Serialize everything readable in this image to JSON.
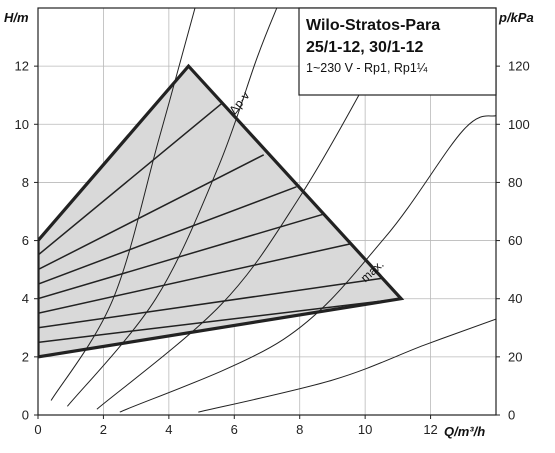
{
  "chart_data": {
    "type": "line",
    "title_lines": [
      "Wilo-Stratos-Para",
      "25/1-12, 30/1-12"
    ],
    "subtitle": "1~230 V - Rp1, Rp1¼",
    "xlabel": "Q/m³/h",
    "ylabel_left": "H/m",
    "ylabel_right": "p/kPa",
    "xlim": [
      0,
      14
    ],
    "ylim": [
      0,
      14
    ],
    "ylim_right": [
      0,
      140
    ],
    "xticks": [
      0,
      2,
      4,
      6,
      8,
      10,
      12
    ],
    "yticks_left": [
      0,
      2,
      4,
      6,
      8,
      10,
      12
    ],
    "yticks_right": [
      0,
      20,
      40,
      60,
      80,
      100,
      120
    ],
    "grid": true,
    "operating_envelope": {
      "points": [
        [
          0,
          6
        ],
        [
          4.6,
          12
        ],
        [
          11.1,
          4
        ],
        [
          0,
          2
        ]
      ],
      "fill": "#d9d9d9",
      "stroke": "#222222"
    },
    "control_lines": [
      [
        [
          0,
          5.5
        ],
        [
          5.6,
          10.7
        ]
      ],
      [
        [
          0,
          5.0
        ],
        [
          6.9,
          8.95
        ]
      ],
      [
        [
          0,
          4.5
        ],
        [
          7.9,
          7.85
        ]
      ],
      [
        [
          0,
          4.0
        ],
        [
          8.7,
          6.9
        ]
      ],
      [
        [
          0,
          3.5
        ],
        [
          9.6,
          5.9
        ]
      ],
      [
        [
          0,
          3.0
        ],
        [
          10.5,
          4.7
        ]
      ],
      [
        [
          0,
          2.5
        ],
        [
          11.1,
          4.0
        ]
      ]
    ],
    "system_curves": [
      [
        [
          0.4,
          0.5
        ],
        [
          2.3,
          4.0
        ],
        [
          3.7,
          9.5
        ],
        [
          4.8,
          14
        ]
      ],
      [
        [
          0.9,
          0.3
        ],
        [
          3.6,
          4.0
        ],
        [
          5.5,
          8.5
        ],
        [
          6.7,
          12.3
        ],
        [
          7.3,
          14
        ]
      ],
      [
        [
          1.8,
          0.2
        ],
        [
          5.6,
          3.8
        ],
        [
          8.0,
          7.5
        ],
        [
          10.1,
          11.6
        ],
        [
          10.9,
          13.4
        ]
      ],
      [
        [
          2.5,
          0.1
        ],
        [
          7.5,
          2.6
        ],
        [
          10.6,
          6.1
        ],
        [
          13.0,
          9.8
        ],
        [
          14,
          10.3
        ]
      ],
      [
        [
          4.9,
          0.1
        ],
        [
          9.0,
          1.2
        ],
        [
          11.8,
          2.4
        ],
        [
          14,
          3.3
        ]
      ]
    ],
    "annotations": [
      {
        "text": "Δp-v",
        "at": [
          6.25,
          10.65
        ],
        "angle": -52
      },
      {
        "text": "max.",
        "at": [
          10.3,
          4.85
        ],
        "angle": -42
      }
    ]
  }
}
